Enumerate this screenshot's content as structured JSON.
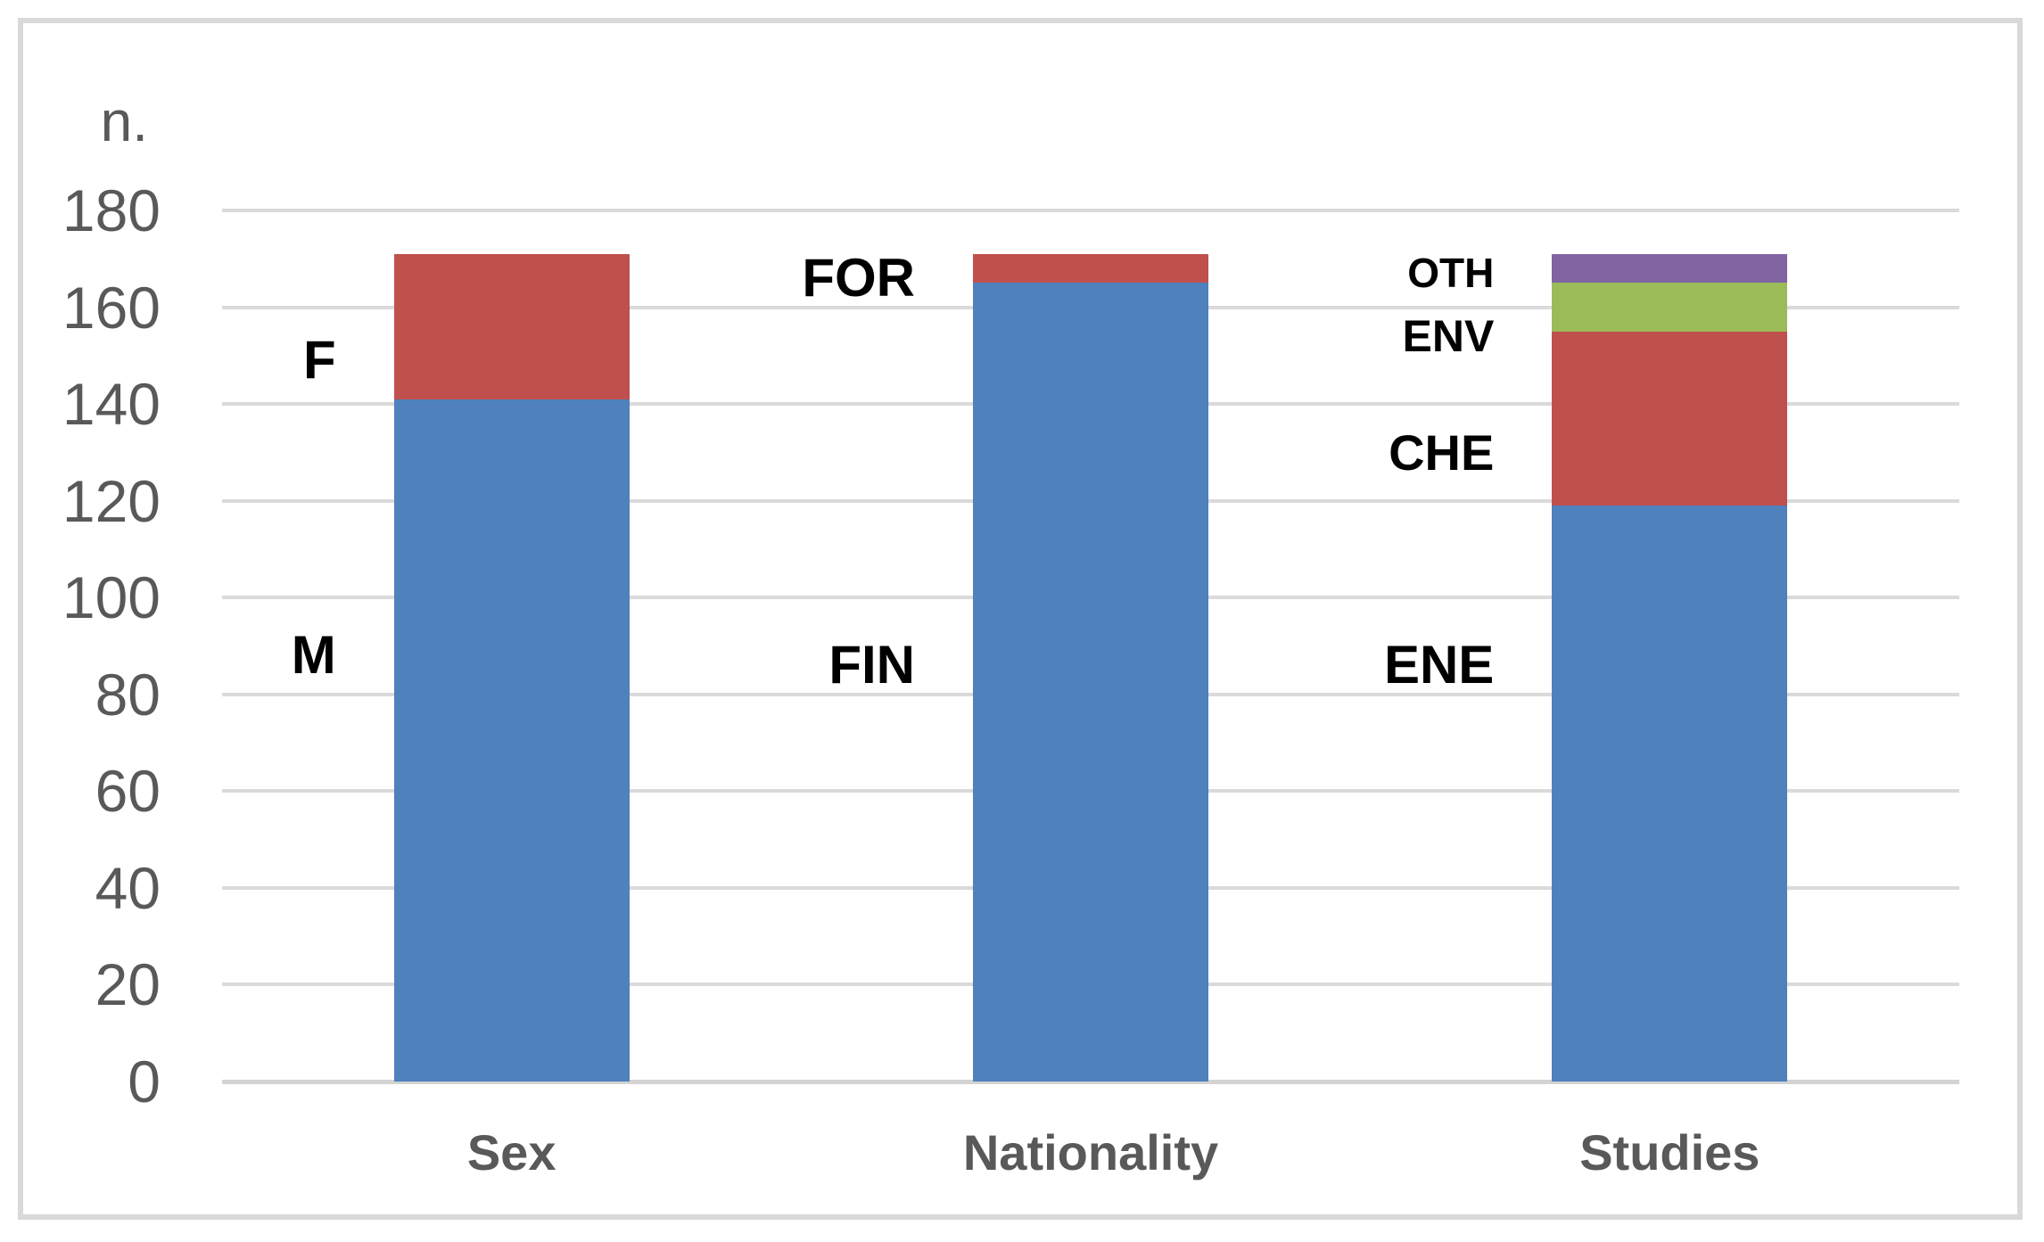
{
  "chart_data": {
    "type": "bar",
    "stacked": true,
    "title": "",
    "y_axis": {
      "title": "n.",
      "min": 0,
      "max": 180,
      "tick_step": 20,
      "ticks": [
        0,
        20,
        40,
        60,
        80,
        100,
        120,
        140,
        160,
        180
      ]
    },
    "categories": [
      "Sex",
      "Nationality",
      "Studies"
    ],
    "bars": [
      {
        "category": "Sex",
        "total": 171,
        "segments": [
          {
            "label": "M",
            "value": 141,
            "color": "#4F81BD",
            "label_at": 88
          },
          {
            "label": "F",
            "value": 30,
            "color": "#C0504D",
            "label_at": 149
          }
        ]
      },
      {
        "category": "Nationality",
        "total": 171,
        "segments": [
          {
            "label": "FIN",
            "value": 165,
            "color": "#4F81BD",
            "label_at": 86
          },
          {
            "label": "FOR",
            "value": 6,
            "color": "#C0504D",
            "label_at": 166
          }
        ]
      },
      {
        "category": "Studies",
        "total": 171,
        "segments": [
          {
            "label": "ENE",
            "value": 119,
            "color": "#4F81BD",
            "label_at": 86
          },
          {
            "label": "CHE",
            "value": 36,
            "color": "#C0504D",
            "label_at": 130
          },
          {
            "label": "ENV",
            "value": 10,
            "color": "#9BBB59",
            "label_at": 154
          },
          {
            "label": "OTH",
            "value": 6,
            "color": "#8064A2",
            "label_at": 167
          }
        ]
      }
    ],
    "gridlines": true,
    "legend_position": "none",
    "grid_color": "#DADADA",
    "border_color": "#D9D9D9",
    "axis_text_color": "#595959",
    "label_text_color": "#000000"
  }
}
